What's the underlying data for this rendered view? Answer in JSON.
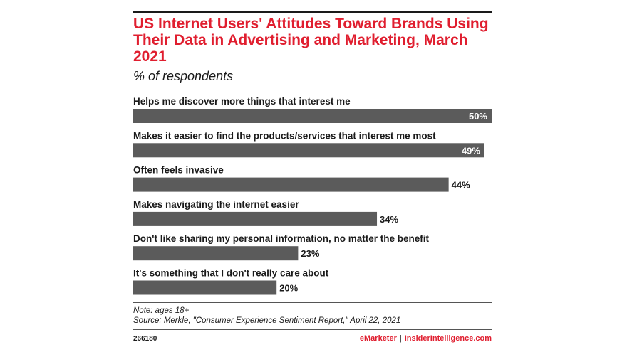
{
  "title": "US Internet Users' Attitudes Toward Brands Using Their Data in Advertising and Marketing, March 2021",
  "subtitle": "% of respondents",
  "colors": {
    "accent": "#e01e2f",
    "bar": "#5b5b5b",
    "text": "#1a1a1a",
    "value_inside": "#ffffff"
  },
  "chart_data": {
    "type": "bar",
    "orientation": "horizontal",
    "title": "US Internet Users' Attitudes Toward Brands Using Their Data in Advertising and Marketing, March 2021",
    "subtitle": "% of respondents",
    "categories": [
      "Helps me discover more things that interest me",
      "Makes it easier to find the products/services that interest me most",
      "Often feels invasive",
      "Makes navigating the internet easier",
      "Don't like sharing my personal information, no matter the benefit",
      "It's something that I don't really care about"
    ],
    "values": [
      50,
      49,
      44,
      34,
      23,
      20
    ],
    "value_labels": [
      "50%",
      "49%",
      "44%",
      "34%",
      "23%",
      "20%"
    ],
    "xlim": [
      0,
      50
    ],
    "grid": false,
    "legend": "none"
  },
  "footer": {
    "note": "Note: ages 18+",
    "source": "Source: Merkle, \"Consumer Experience Sentiment Report,\" April 22, 2021",
    "chart_id": "266180",
    "brand_left": "eMarketer",
    "brand_separator": "|",
    "brand_right": "InsiderIntelligence.com"
  }
}
